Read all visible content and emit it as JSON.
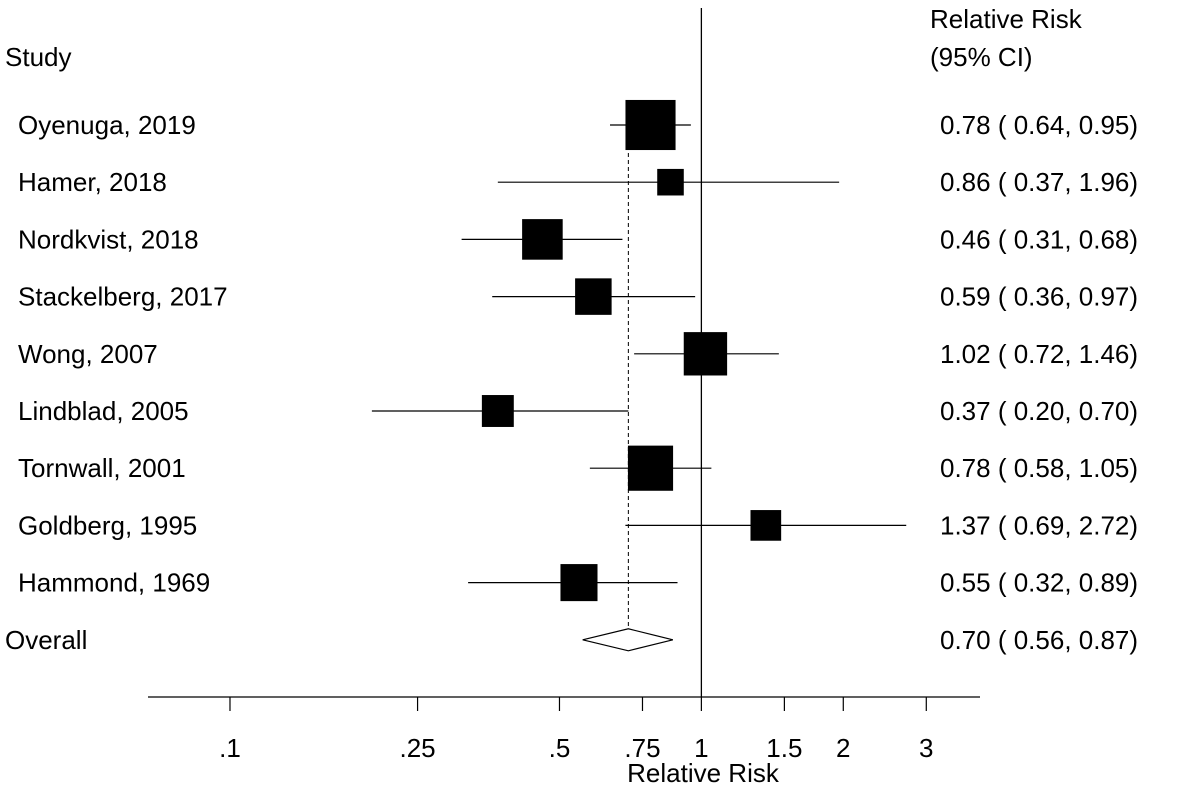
{
  "chart_data": {
    "type": "forest",
    "xscale": "log",
    "xlim": [
      0.067,
      3.9
    ],
    "null_line": 1,
    "xlabel": "Relative Risk",
    "study_header": "Study",
    "rr_header_line1": "Relative Risk",
    "rr_header_line2": "(95% CI)",
    "ticks": [
      {
        "value": 0.1,
        "label": ".1"
      },
      {
        "value": 0.25,
        "label": ".25"
      },
      {
        "value": 0.5,
        "label": ".5"
      },
      {
        "value": 0.75,
        "label": ".75"
      },
      {
        "value": 1,
        "label": "1"
      },
      {
        "value": 1.5,
        "label": "1.5"
      },
      {
        "value": 2,
        "label": "2"
      },
      {
        "value": 3,
        "label": "3"
      }
    ],
    "studies": [
      {
        "label": "Oyenuga, 2019",
        "rr": 0.78,
        "lo": 0.64,
        "hi": 0.95,
        "weight": 3.2,
        "text": "0.78 ( 0.64, 0.95)"
      },
      {
        "label": "Hamer, 2018",
        "rr": 0.86,
        "lo": 0.37,
        "hi": 1.96,
        "weight": 0.9,
        "text": "0.86 ( 0.37, 1.96)"
      },
      {
        "label": "Nordkvist, 2018",
        "rr": 0.46,
        "lo": 0.31,
        "hi": 0.68,
        "weight": 2.1,
        "text": "0.46 ( 0.31, 0.68)"
      },
      {
        "label": "Stackelberg, 2017",
        "rr": 0.59,
        "lo": 0.36,
        "hi": 0.97,
        "weight": 1.7,
        "text": "0.59 ( 0.36, 0.97)"
      },
      {
        "label": "Wong, 2007",
        "rr": 1.02,
        "lo": 0.72,
        "hi": 1.46,
        "weight": 2.4,
        "text": "1.02 ( 0.72, 1.46)"
      },
      {
        "label": "Lindblad, 2005",
        "rr": 0.37,
        "lo": 0.2,
        "hi": 0.7,
        "weight": 1.3,
        "text": "0.37 ( 0.20, 0.70)"
      },
      {
        "label": "Tornwall, 2001",
        "rr": 0.78,
        "lo": 0.58,
        "hi": 1.05,
        "weight": 2.6,
        "text": "0.78 ( 0.58, 1.05)"
      },
      {
        "label": "Goldberg, 1995",
        "rr": 1.37,
        "lo": 0.69,
        "hi": 2.72,
        "weight": 1.2,
        "text": "1.37 ( 0.69, 2.72)"
      },
      {
        "label": "Hammond, 1969",
        "rr": 0.55,
        "lo": 0.32,
        "hi": 0.89,
        "weight": 1.75,
        "text": "0.55 ( 0.32, 0.89)"
      }
    ],
    "overall": {
      "label": "Overall",
      "rr": 0.7,
      "lo": 0.56,
      "hi": 0.87,
      "text": "0.70 ( 0.56, 0.87)"
    }
  }
}
